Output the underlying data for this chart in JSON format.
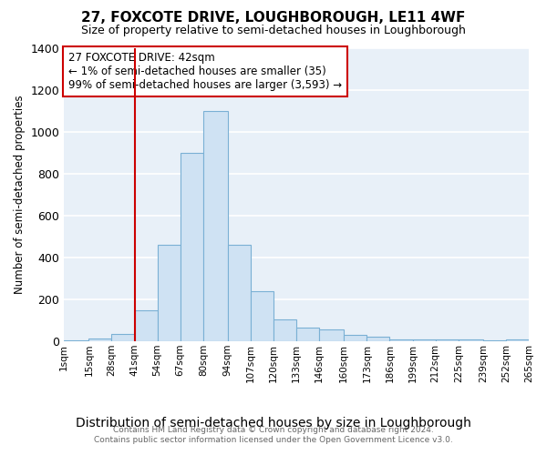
{
  "title": "27, FOXCOTE DRIVE, LOUGHBOROUGH, LE11 4WF",
  "subtitle": "Size of property relative to semi-detached houses in Loughborough",
  "xlabel": "Distribution of semi-detached houses by size in Loughborough",
  "ylabel": "Number of semi-detached properties",
  "annotation_line1": "27 FOXCOTE DRIVE: 42sqm",
  "annotation_line2": "← 1% of semi-detached houses are smaller (35)",
  "annotation_line3": "99% of semi-detached houses are larger (3,593) →",
  "footer_line1": "Contains HM Land Registry data © Crown copyright and database right 2024.",
  "footer_line2": "Contains public sector information licensed under the Open Government Licence v3.0.",
  "bar_lefts": [
    1,
    15,
    28,
    41,
    54,
    67,
    80,
    94,
    107,
    120,
    133,
    146,
    160,
    173,
    186,
    199,
    212,
    225,
    239,
    252
  ],
  "bar_widths": [
    14,
    13,
    13,
    13,
    13,
    13,
    14,
    13,
    13,
    13,
    13,
    14,
    13,
    13,
    13,
    13,
    13,
    14,
    13,
    13
  ],
  "bar_heights": [
    5,
    15,
    35,
    150,
    460,
    900,
    1100,
    460,
    240,
    105,
    65,
    55,
    30,
    22,
    8,
    10,
    10,
    8,
    5,
    10
  ],
  "bar_color": "#cfe2f3",
  "bar_edge_color": "#7ab0d4",
  "property_line_x": 41,
  "property_line_color": "#cc0000",
  "ylim": [
    0,
    1400
  ],
  "xlim": [
    1,
    265
  ],
  "tick_positions": [
    1,
    15,
    28,
    41,
    54,
    67,
    80,
    94,
    107,
    120,
    133,
    146,
    160,
    173,
    186,
    199,
    212,
    225,
    239,
    252,
    265
  ],
  "tick_labels": [
    "1sqm",
    "15sqm",
    "28sqm",
    "41sqm",
    "54sqm",
    "67sqm",
    "80sqm",
    "94sqm",
    "107sqm",
    "120sqm",
    "133sqm",
    "146sqm",
    "160sqm",
    "173sqm",
    "186sqm",
    "199sqm",
    "212sqm",
    "225sqm",
    "239sqm",
    "252sqm",
    "265sqm"
  ],
  "yticks": [
    0,
    200,
    400,
    600,
    800,
    1000,
    1200,
    1400
  ],
  "plot_bg_color": "#e8f0f8",
  "fig_bg_color": "#ffffff",
  "grid_color": "#ffffff",
  "annotation_box_facecolor": "#ffffff",
  "annotation_box_edgecolor": "#cc0000"
}
